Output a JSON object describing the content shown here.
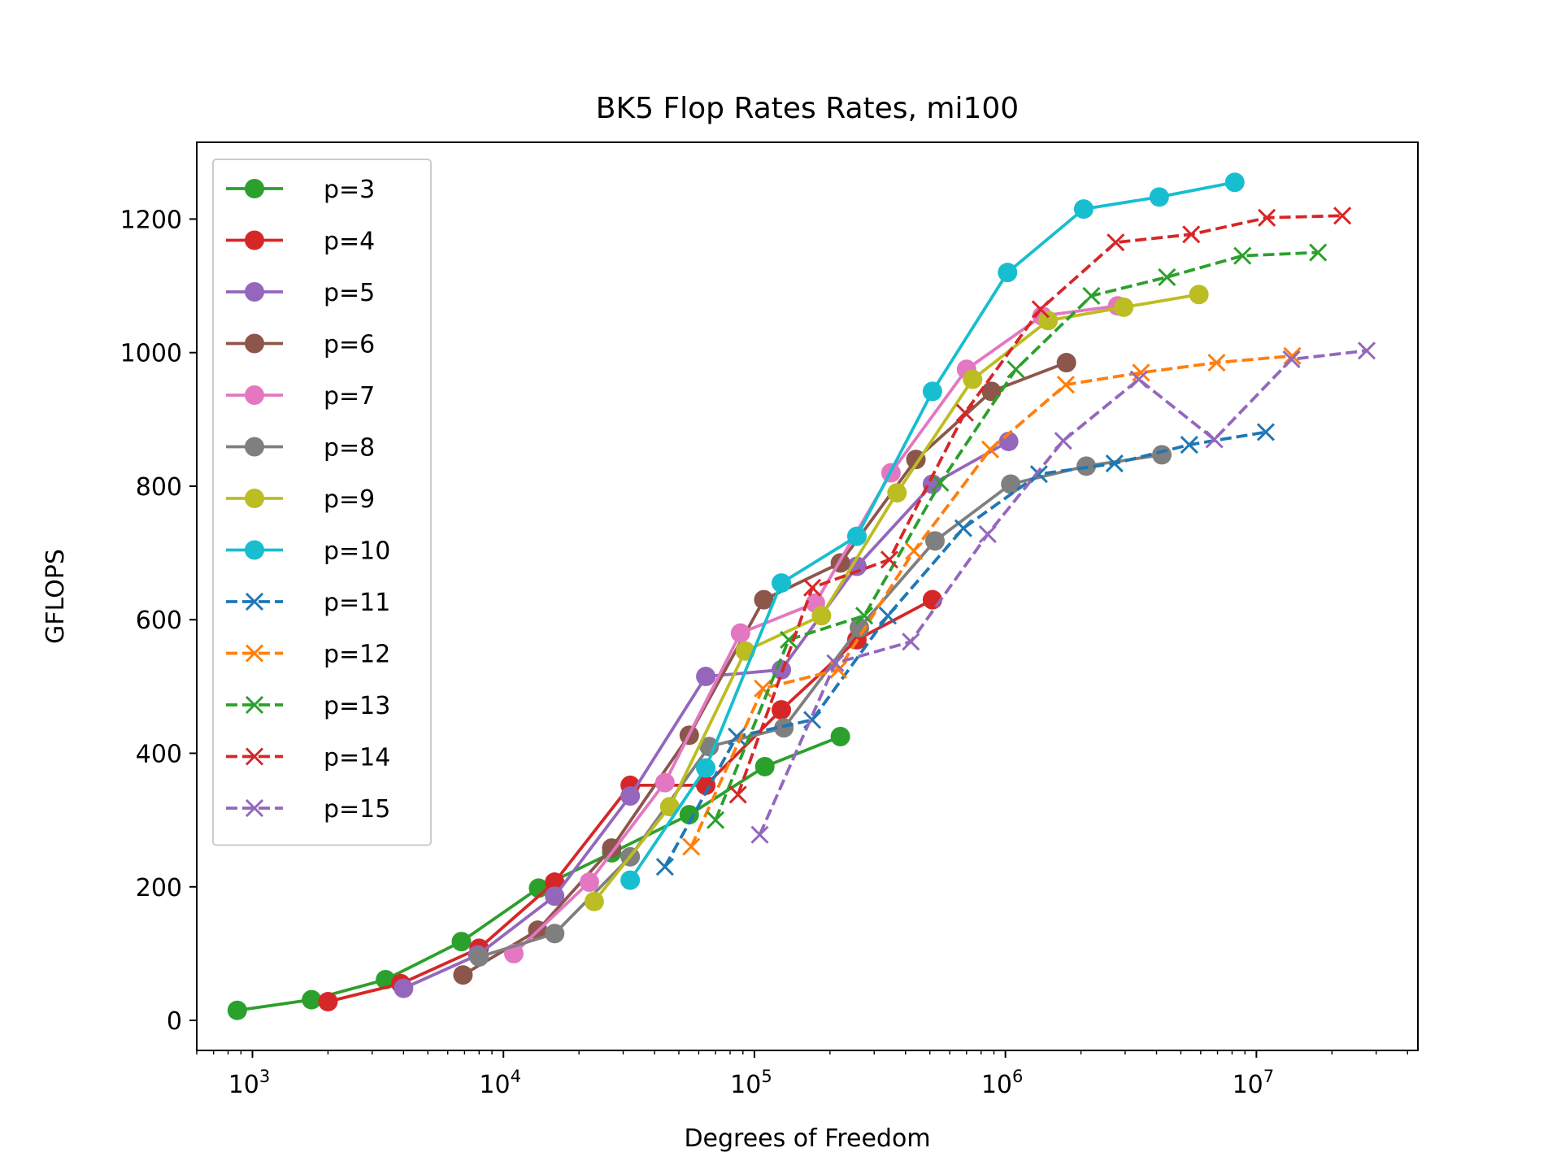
{
  "chart_data": {
    "type": "line",
    "title": "BK5 Flop Rates Rates, mi100",
    "xlabel": "Degrees of Freedom",
    "ylabel": "GFLOPS",
    "xscale": "log",
    "xlim": [
      600,
      44000000
    ],
    "ylim": [
      -45,
      1315
    ],
    "xticks": [
      {
        "value": 1000,
        "base": "10",
        "exp": "3"
      },
      {
        "value": 10000,
        "base": "10",
        "exp": "4"
      },
      {
        "value": 100000,
        "base": "10",
        "exp": "5"
      },
      {
        "value": 1000000,
        "base": "10",
        "exp": "6"
      },
      {
        "value": 10000000,
        "base": "10",
        "exp": "7"
      }
    ],
    "yticks": [
      0,
      200,
      400,
      600,
      800,
      1000,
      1200
    ],
    "grid": false,
    "legend_position": "upper-left",
    "series": [
      {
        "name": "p=3",
        "color": "#2ca02c",
        "marker": "circle",
        "dash": "solid",
        "points": [
          [
            870,
            15
          ],
          [
            1720,
            31
          ],
          [
            3390,
            61
          ],
          [
            6800,
            118
          ],
          [
            13800,
            198
          ],
          [
            27000,
            251
          ],
          [
            55000,
            308
          ],
          [
            110000,
            380
          ],
          [
            220000,
            425
          ]
        ]
      },
      {
        "name": "p=4",
        "color": "#d62728",
        "marker": "circle",
        "dash": "solid",
        "points": [
          [
            2000,
            28
          ],
          [
            3900,
            55
          ],
          [
            8000,
            108
          ],
          [
            16000,
            207
          ],
          [
            32000,
            352
          ],
          [
            64000,
            352
          ],
          [
            128000,
            465
          ],
          [
            256000,
            570
          ],
          [
            512000,
            630
          ]
        ]
      },
      {
        "name": "p=5",
        "color": "#9467bd",
        "marker": "circle",
        "dash": "solid",
        "points": [
          [
            4000,
            48
          ],
          [
            7900,
            98
          ],
          [
            16000,
            186
          ],
          [
            32000,
            336
          ],
          [
            64000,
            515
          ],
          [
            128000,
            525
          ],
          [
            256000,
            680
          ],
          [
            512000,
            803
          ],
          [
            1030000,
            867
          ]
        ]
      },
      {
        "name": "p=6",
        "color": "#8c564b",
        "marker": "circle",
        "dash": "solid",
        "points": [
          [
            6900,
            68
          ],
          [
            13700,
            135
          ],
          [
            27000,
            258
          ],
          [
            55000,
            427
          ],
          [
            109000,
            630
          ],
          [
            220000,
            685
          ],
          [
            440000,
            840
          ],
          [
            880000,
            942
          ],
          [
            1750000,
            985
          ]
        ]
      },
      {
        "name": "p=7",
        "color": "#e377c2",
        "marker": "circle",
        "dash": "solid",
        "points": [
          [
            11000,
            100
          ],
          [
            22000,
            207
          ],
          [
            44000,
            356
          ],
          [
            88000,
            580
          ],
          [
            175000,
            625
          ],
          [
            350000,
            820
          ],
          [
            700000,
            975
          ],
          [
            1400000,
            1055
          ],
          [
            2800000,
            1070
          ]
        ]
      },
      {
        "name": "p=8",
        "color": "#7f7f7f",
        "marker": "circle",
        "dash": "solid",
        "points": [
          [
            8000,
            95
          ],
          [
            16000,
            130
          ],
          [
            32000,
            245
          ],
          [
            66000,
            410
          ],
          [
            131000,
            438
          ],
          [
            262000,
            588
          ],
          [
            524000,
            718
          ],
          [
            1050000,
            803
          ],
          [
            2100000,
            830
          ],
          [
            4200000,
            847
          ]
        ]
      },
      {
        "name": "p=9",
        "color": "#bcbd22",
        "marker": "circle",
        "dash": "solid",
        "points": [
          [
            23000,
            178
          ],
          [
            46000,
            320
          ],
          [
            92000,
            553
          ],
          [
            185000,
            606
          ],
          [
            370000,
            790
          ],
          [
            740000,
            960
          ],
          [
            1480000,
            1048
          ],
          [
            2960000,
            1068
          ],
          [
            5900000,
            1087
          ]
        ]
      },
      {
        "name": "p=10",
        "color": "#17becf",
        "marker": "circle",
        "dash": "solid",
        "points": [
          [
            32000,
            210
          ],
          [
            64000,
            378
          ],
          [
            128000,
            655
          ],
          [
            256000,
            725
          ],
          [
            512000,
            942
          ],
          [
            1020000,
            1120
          ],
          [
            2050000,
            1215
          ],
          [
            4100000,
            1233
          ],
          [
            8200000,
            1255
          ]
        ]
      },
      {
        "name": "p=11",
        "color": "#1f77b4",
        "marker": "x",
        "dash": "dashed",
        "points": [
          [
            44000,
            230
          ],
          [
            85000,
            425
          ],
          [
            170000,
            450
          ],
          [
            340000,
            606
          ],
          [
            680000,
            737
          ],
          [
            1360000,
            818
          ],
          [
            2720000,
            834
          ],
          [
            5400000,
            862
          ],
          [
            10900000,
            881
          ]
        ]
      },
      {
        "name": "p=12",
        "color": "#ff7f0e",
        "marker": "x",
        "dash": "dashed",
        "points": [
          [
            56000,
            260
          ],
          [
            108000,
            497
          ],
          [
            216000,
            525
          ],
          [
            432000,
            703
          ],
          [
            870000,
            855
          ],
          [
            1740000,
            952
          ],
          [
            3470000,
            970
          ],
          [
            6940000,
            985
          ],
          [
            13900000,
            995
          ]
        ]
      },
      {
        "name": "p=13",
        "color": "#2ca02c",
        "marker": "x",
        "dash": "dashed",
        "points": [
          [
            70000,
            300
          ],
          [
            137000,
            570
          ],
          [
            274000,
            606
          ],
          [
            550000,
            805
          ],
          [
            1100000,
            975
          ],
          [
            2200000,
            1085
          ],
          [
            4400000,
            1113
          ],
          [
            8800000,
            1145
          ],
          [
            17600000,
            1150
          ]
        ]
      },
      {
        "name": "p=14",
        "color": "#d62728",
        "marker": "x",
        "dash": "dashed",
        "points": [
          [
            86000,
            338
          ],
          [
            170000,
            648
          ],
          [
            345000,
            690
          ],
          [
            690000,
            910
          ],
          [
            1380000,
            1065
          ],
          [
            2750000,
            1165
          ],
          [
            5500000,
            1177
          ],
          [
            11000000,
            1202
          ],
          [
            22000000,
            1205
          ]
        ]
      },
      {
        "name": "p=15",
        "color": "#9467bd",
        "marker": "x",
        "dash": "dashed",
        "points": [
          [
            105000,
            278
          ],
          [
            210000,
            535
          ],
          [
            420000,
            567
          ],
          [
            850000,
            728
          ],
          [
            1700000,
            868
          ],
          [
            3400000,
            960
          ],
          [
            6800000,
            870
          ],
          [
            13800000,
            990
          ],
          [
            27500000,
            1003
          ]
        ]
      }
    ]
  }
}
